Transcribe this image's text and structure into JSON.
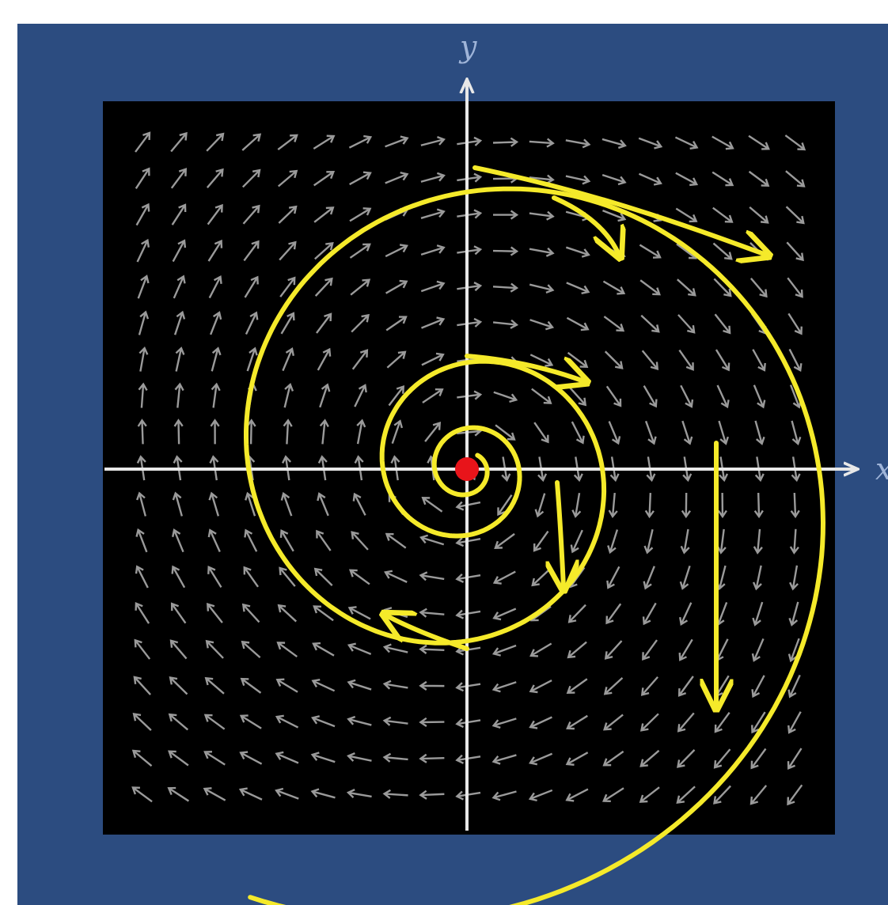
{
  "axes": {
    "x_label": "x",
    "y_label": "y"
  }
}
